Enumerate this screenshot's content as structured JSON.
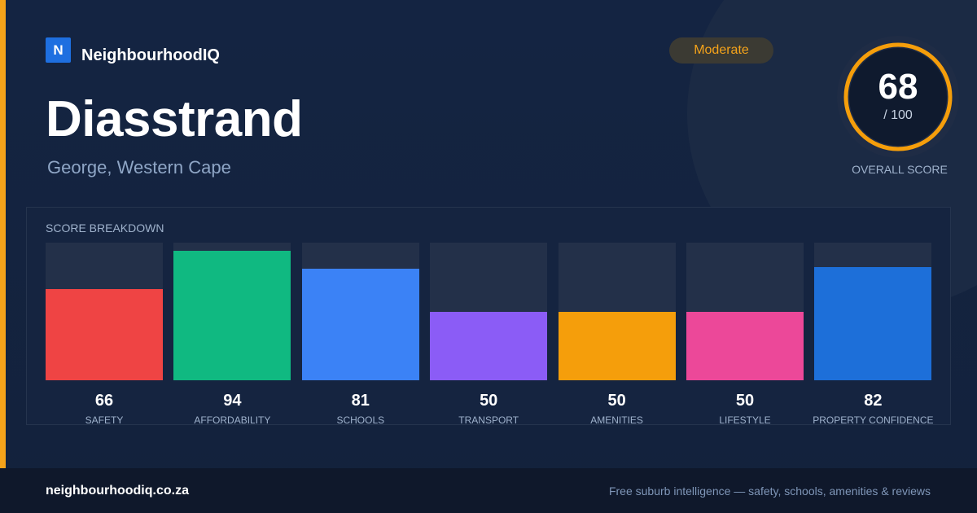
{
  "brand": {
    "logo_letter": "N",
    "name": "NeighbourhoodIQ"
  },
  "suburb": {
    "name": "Diasstrand",
    "location": "George, Western Cape"
  },
  "rating_badge": "Moderate",
  "overall": {
    "score": 68,
    "max_label": "/ 100",
    "label": "OVERALL SCORE"
  },
  "breakdown_title": "SCORE BREAKDOWN",
  "chart_data": {
    "type": "bar",
    "title": "SCORE BREAKDOWN",
    "categories": [
      "SAFETY",
      "AFFORDABILITY",
      "SCHOOLS",
      "TRANSPORT",
      "AMENITIES",
      "LIFESTYLE",
      "PROPERTY CONFIDENCE"
    ],
    "values": [
      66,
      94,
      81,
      50,
      50,
      50,
      82
    ],
    "colors": [
      "#ef4444",
      "#10b981",
      "#3b82f6",
      "#8b5cf6",
      "#f59e0b",
      "#ec4899",
      "#1d6fd9"
    ],
    "ylim": [
      0,
      100
    ],
    "grid": false
  },
  "colors": {
    "accent": "#f5a31a",
    "ring": "#f59e0b",
    "background": "#142442"
  },
  "footer": {
    "url": "neighbourhoodiq.co.za",
    "tagline": "Free suburb intelligence — safety, schools, amenities & reviews"
  }
}
